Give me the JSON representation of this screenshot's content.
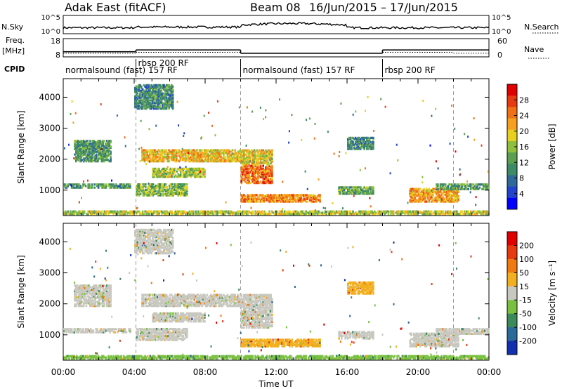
{
  "header": {
    "title": "Adak East (fitACF)",
    "beam": "Beam 08",
    "daterange": "16/Jun/2015 – 17/Jun/2015"
  },
  "noise_panel": {
    "left_label": "N.Sky",
    "right_label": "N.Search",
    "tick_top": "10^5",
    "tick_bottom": "10^0"
  },
  "freq_panel": {
    "left_label_1": "Freq.",
    "left_label_2": "[MHz]",
    "right_label": "Nave",
    "left_ticks": [
      "18",
      "8"
    ],
    "right_ticks": [
      "60",
      "0"
    ],
    "freq_mhz": [
      {
        "t0": 0,
        "t1": 4.1,
        "f": 10.8
      },
      {
        "t0": 4.1,
        "t1": 10.0,
        "f": 11.8
      },
      {
        "t0": 10.0,
        "t1": 18.0,
        "f": 10.0
      },
      {
        "t0": 18.0,
        "t1": 24.0,
        "f": 11.8
      }
    ],
    "nave": [
      {
        "t0": 0,
        "t1": 4.1,
        "n": 12
      },
      {
        "t0": 4.1,
        "t1": 10.0,
        "n": 15
      },
      {
        "t0": 10.0,
        "t1": 18.0,
        "n": 12
      },
      {
        "t0": 18.0,
        "t1": 22.0,
        "n": 15
      },
      {
        "t0": 22.0,
        "t1": 24.0,
        "n": 12
      }
    ]
  },
  "cpid": {
    "label": "CPID",
    "segments": [
      {
        "t0": 0.0,
        "t1": 4.1,
        "label": "normalsound (fast) 157 RF",
        "row": "bottom"
      },
      {
        "t0": 4.1,
        "t1": 10.0,
        "label": "rbsp 200 RF",
        "row": "top"
      },
      {
        "t0": 10.0,
        "t1": 18.0,
        "label": "normalsound (fast) 157 RF",
        "row": "bottom"
      },
      {
        "t0": 18.0,
        "t1": 22.0,
        "label": "rbsp 200 RF",
        "row": "bottom"
      }
    ]
  },
  "chart_data": [
    {
      "type": "heatmap",
      "name": "power",
      "ylabel": "Slant Range [km]",
      "xlabel": "",
      "xlim": [
        0,
        24
      ],
      "ylim": [
        180,
        4600
      ],
      "yticks": [
        1000,
        2000,
        3000,
        4000
      ],
      "colorbar": {
        "label": "Power [dB]",
        "ticks": [
          "28",
          "24",
          "20",
          "16",
          "12",
          "8",
          "4"
        ],
        "colors": [
          "#0000ff",
          "#2244cc",
          "#2d6a9a",
          "#3d8a66",
          "#5aa050",
          "#8fbf3c",
          "#e8d020",
          "#f5a020",
          "#f07018",
          "#e83a12",
          "#e00000"
        ]
      },
      "bands": [
        {
          "t0": 0.0,
          "t1": 3.8,
          "r0": 1050,
          "r1": 1200,
          "level": 0.35
        },
        {
          "t0": 4.1,
          "t1": 7.0,
          "r0": 800,
          "r1": 1200,
          "level": 0.45
        },
        {
          "t0": 5.0,
          "t1": 8.0,
          "r0": 1400,
          "r1": 1700,
          "level": 0.5
        },
        {
          "t0": 4.4,
          "t1": 10.0,
          "r0": 1900,
          "r1": 2300,
          "level": 0.65
        },
        {
          "t0": 10.0,
          "t1": 11.8,
          "r0": 1200,
          "r1": 1800,
          "level": 0.8
        },
        {
          "t0": 10.0,
          "t1": 11.8,
          "r0": 1800,
          "r1": 2300,
          "level": 0.6
        },
        {
          "t0": 10.0,
          "t1": 14.5,
          "r0": 600,
          "r1": 850,
          "level": 0.75
        },
        {
          "t0": 15.5,
          "t1": 17.5,
          "r0": 850,
          "r1": 1100,
          "level": 0.4
        },
        {
          "t0": 16.0,
          "t1": 17.5,
          "r0": 2300,
          "r1": 2700,
          "level": 0.3
        },
        {
          "t0": 19.5,
          "t1": 22.3,
          "r0": 600,
          "r1": 1050,
          "level": 0.7
        },
        {
          "t0": 0.6,
          "t1": 2.7,
          "r0": 1900,
          "r1": 2600,
          "level": 0.35
        },
        {
          "t0": 4.0,
          "t1": 6.2,
          "r0": 3600,
          "r1": 4400,
          "level": 0.3
        },
        {
          "t0": 21.0,
          "t1": 24.0,
          "r0": 1000,
          "r1": 1200,
          "level": 0.35
        },
        {
          "t0": 0.0,
          "t1": 24.0,
          "r0": 200,
          "r1": 320,
          "level": 0.55
        }
      ]
    },
    {
      "type": "heatmap",
      "name": "velocity",
      "ylabel": "Slant Range [km]",
      "xlabel": "Time UT",
      "xlim": [
        0,
        24
      ],
      "ylim": [
        180,
        4600
      ],
      "yticks": [
        1000,
        2000,
        3000,
        4000
      ],
      "xticks": [
        "00:00",
        "04:00",
        "08:00",
        "12:00",
        "16:00",
        "20:00",
        "00:00"
      ],
      "colorbar": {
        "label": "Velocity [m s⁻¹]",
        "ticks": [
          "200",
          "100",
          "50",
          "15",
          "-15",
          "-50",
          "-100",
          "-200"
        ],
        "colors": [
          "#1030b0",
          "#2a6a9a",
          "#3a8a5a",
          "#7ac040",
          "#c8c8c0",
          "#f2b020",
          "#f07a10",
          "#e83810",
          "#e00000"
        ]
      },
      "bands": [
        {
          "t0": 0.0,
          "t1": 3.8,
          "r0": 1050,
          "r1": 1200,
          "level": 0.5
        },
        {
          "t0": 4.1,
          "t1": 7.0,
          "r0": 800,
          "r1": 1200,
          "level": 0.5
        },
        {
          "t0": 5.0,
          "t1": 8.0,
          "r0": 1400,
          "r1": 1700,
          "level": 0.5
        },
        {
          "t0": 4.4,
          "t1": 10.0,
          "r0": 1900,
          "r1": 2300,
          "level": 0.5
        },
        {
          "t0": 10.0,
          "t1": 11.8,
          "r0": 1200,
          "r1": 1800,
          "level": 0.5
        },
        {
          "t0": 10.0,
          "t1": 11.8,
          "r0": 1800,
          "r1": 2300,
          "level": 0.5
        },
        {
          "t0": 10.0,
          "t1": 14.5,
          "r0": 600,
          "r1": 850,
          "level": 0.65
        },
        {
          "t0": 15.5,
          "t1": 17.5,
          "r0": 850,
          "r1": 1100,
          "level": 0.5
        },
        {
          "t0": 16.0,
          "t1": 17.5,
          "r0": 2300,
          "r1": 2700,
          "level": 0.65
        },
        {
          "t0": 19.5,
          "t1": 22.3,
          "r0": 600,
          "r1": 1050,
          "level": 0.5
        },
        {
          "t0": 0.6,
          "t1": 2.7,
          "r0": 1900,
          "r1": 2600,
          "level": 0.5
        },
        {
          "t0": 4.0,
          "t1": 6.2,
          "r0": 3600,
          "r1": 4400,
          "level": 0.45
        },
        {
          "t0": 21.0,
          "t1": 24.0,
          "r0": 1000,
          "r1": 1200,
          "level": 0.5
        },
        {
          "t0": 0.0,
          "t1": 24.0,
          "r0": 200,
          "r1": 320,
          "level": 0.4
        }
      ]
    }
  ]
}
